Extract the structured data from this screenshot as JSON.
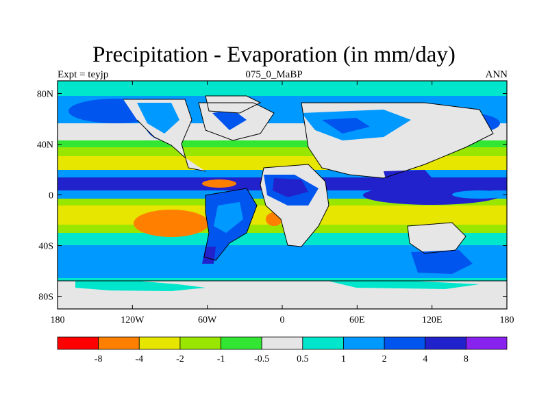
{
  "title": "Precipitation - Evaporation (in mm/day)",
  "subtitle_left": "Expt = teyjp",
  "subtitle_center": "075_0_MaBP",
  "subtitle_right": "ANN",
  "map": {
    "projection": "cylindrical-equidistant",
    "lon_range": [
      -180,
      180
    ],
    "lat_range": [
      -90,
      90
    ],
    "x_ticks": [
      {
        "value": -180,
        "label": "180"
      },
      {
        "value": -120,
        "label": "120W"
      },
      {
        "value": -60,
        "label": "60W"
      },
      {
        "value": 0,
        "label": "0"
      },
      {
        "value": 60,
        "label": "60E"
      },
      {
        "value": 120,
        "label": "120E"
      },
      {
        "value": 180,
        "label": "180"
      }
    ],
    "y_ticks": [
      {
        "value": 80,
        "label": "80N"
      },
      {
        "value": 40,
        "label": "40N"
      },
      {
        "value": 0,
        "label": "0"
      },
      {
        "value": -40,
        "label": "40S"
      },
      {
        "value": -80,
        "label": "80S"
      }
    ]
  },
  "colorbar": {
    "colors": [
      "#ff0000",
      "#ff8000",
      "#e6e600",
      "#99e600",
      "#33e633",
      "#e6e6e6",
      "#00e6cc",
      "#0099ff",
      "#0055ee",
      "#2222cc",
      "#8822ee"
    ],
    "labels": [
      "-8",
      "-4",
      "-2",
      "-1",
      "-0.5",
      "0.5",
      "1",
      "2",
      "4",
      "8"
    ]
  }
}
